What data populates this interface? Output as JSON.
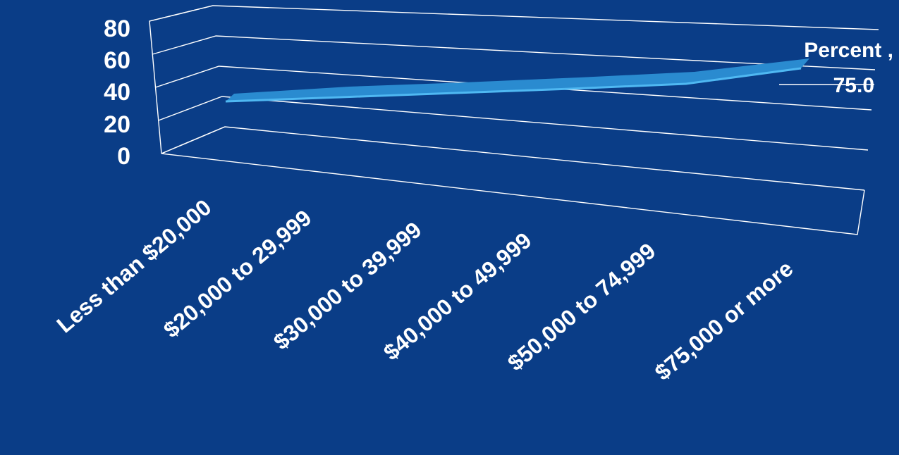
{
  "chart_data": {
    "type": "line",
    "categories": [
      "Less than $20,000",
      "$20,000 to 29,999",
      "$30,000 to 39,999",
      "$40,000 to  49,999",
      "$50,000 to 74,999",
      "$75,000 or more"
    ],
    "series": [
      {
        "name": "Percent",
        "values": [
          45.0,
          51.0,
          57.0,
          62.0,
          67.0,
          75.0
        ]
      }
    ],
    "data_label": {
      "series": "Percent",
      "value": "75.0",
      "text": "Percent ,\n75.0"
    },
    "ylim": [
      0,
      80
    ],
    "yticks": [
      "0",
      "20",
      "40",
      "60",
      "80"
    ],
    "grid": true,
    "three_d": true,
    "colors": {
      "background": "#0a3d87",
      "ribbon_top": "#2a8bd0",
      "ribbon_edge": "#4fb8f2",
      "text": "#ffffff"
    }
  }
}
